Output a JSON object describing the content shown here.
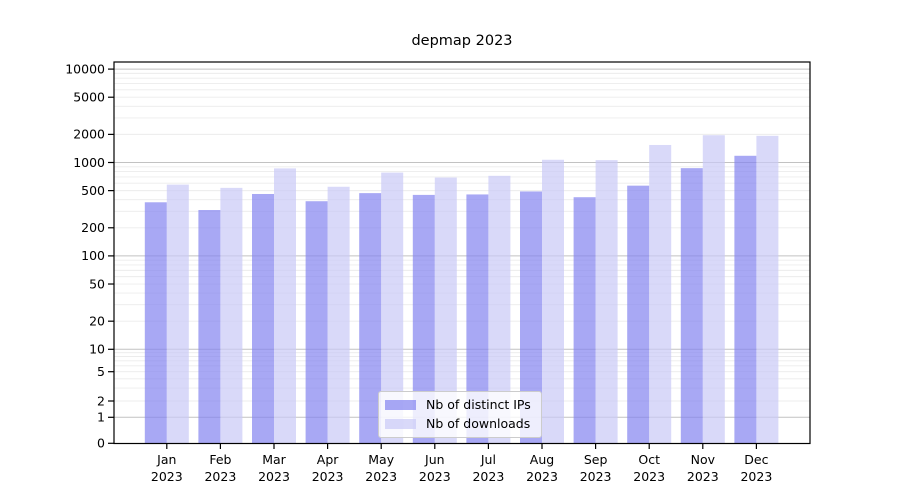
{
  "title": "depmap 2023",
  "chart_data": {
    "type": "bar",
    "title": "depmap 2023",
    "xlabel": "",
    "ylabel": "",
    "yscale": "symlog",
    "grid": true,
    "legend_position": "lower center",
    "yticks": [
      0,
      1,
      2,
      5,
      10,
      20,
      50,
      100,
      200,
      500,
      1000,
      2000,
      5000,
      10000
    ],
    "ylim": [
      0,
      12000
    ],
    "categories": [
      "Jan 2023",
      "Feb 2023",
      "Mar 2023",
      "Apr 2023",
      "May 2023",
      "Jun 2023",
      "Jul 2023",
      "Aug 2023",
      "Sep 2023",
      "Oct 2023",
      "Nov 2023",
      "Dec 2023"
    ],
    "series": [
      {
        "name": "Nb of distinct IPs",
        "color": "#8383f0",
        "values": [
          375,
          310,
          460,
          385,
          470,
          450,
          455,
          490,
          425,
          565,
          870,
          1180
        ]
      },
      {
        "name": "Nb of downloads",
        "color": "#c9c9f6",
        "values": [
          580,
          535,
          865,
          550,
          780,
          690,
          720,
          1070,
          1060,
          1540,
          1960,
          1930
        ]
      }
    ]
  },
  "colors": {
    "major_grid": "#c2c2c2",
    "minor_grid": "#ececec",
    "axis": "#000000",
    "background": "#ffffff"
  }
}
